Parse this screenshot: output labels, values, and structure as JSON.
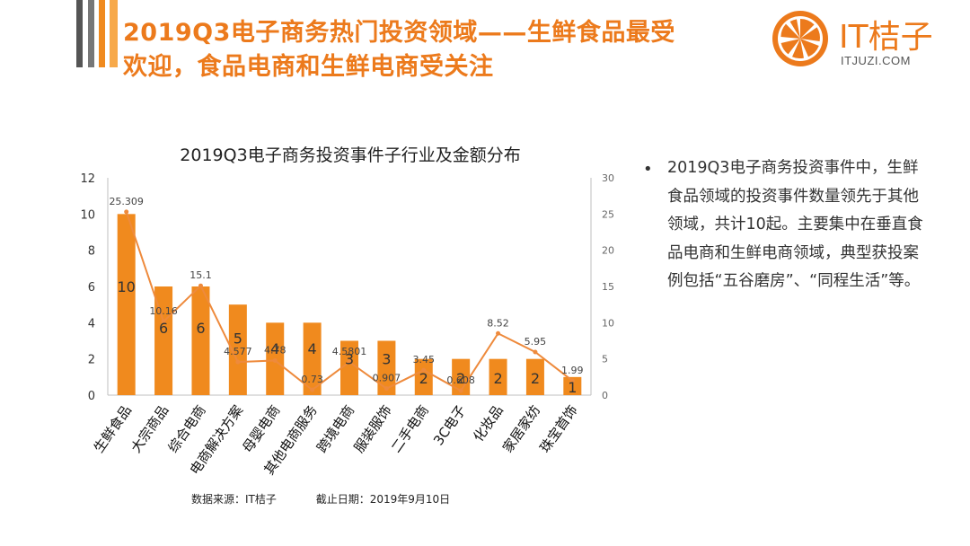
{
  "header": {
    "title_line1": "2019Q3电子商务热门投资领域——生鲜食品最受",
    "title_line2": "欢迎，食品电商和生鲜电商受关注"
  },
  "logo": {
    "name": "IT桔子",
    "domain": "ITJUZI.COM",
    "icon": "orange-slice-icon"
  },
  "colors": {
    "accent": "#ec7a1c",
    "bar": "#f08a1e",
    "line": "#ee8a3c"
  },
  "chart_data": {
    "type": "bar",
    "title": "2019Q3电子商务投资事件子行业及金额分布",
    "categories": [
      "生鲜食品",
      "大宗商品",
      "综合电商",
      "电商解决方案",
      "母婴电商",
      "其他电商服务",
      "跨境电商",
      "服装服饰",
      "二手电商",
      "3C电子",
      "化妆品",
      "家居家纺",
      "珠宝首饰"
    ],
    "series": [
      {
        "type": "bar",
        "axis": "left",
        "values": [
          10,
          6,
          6,
          5,
          4,
          4,
          3,
          3,
          2,
          2,
          2,
          2,
          1
        ]
      },
      {
        "type": "line",
        "axis": "right",
        "values": [
          25.309,
          10.16,
          15.1,
          4.577,
          4.78,
          0.73,
          4.5801,
          0.907,
          3.45,
          0.608,
          8.52,
          5.95,
          1.99
        ]
      }
    ],
    "y_left": {
      "range": [
        0,
        12
      ],
      "ticks": [
        "0",
        "2",
        "4",
        "6",
        "8",
        "10",
        "12"
      ]
    },
    "y_right": {
      "range": [
        0,
        30
      ],
      "ticks": [
        "0",
        "5",
        "10",
        "15",
        "20",
        "25",
        "30"
      ]
    },
    "grid": false,
    "legend": "none"
  },
  "note": {
    "bullet": "•",
    "text": "2019Q3电子商务投资事件中，生鲜食品领域的投资事件数量领先于其他领域，共计10起。主要集中在垂直食品电商和生鲜电商领域，典型获投案例包括“五谷磨房”、“同程生活”等。"
  },
  "source": {
    "label": "数据来源：IT桔子",
    "date": "截止日期：2019年9月10日"
  }
}
